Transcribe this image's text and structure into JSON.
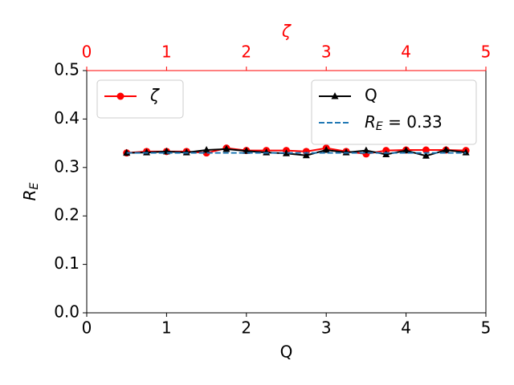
{
  "chart_data": {
    "type": "line",
    "xlabel": "Q",
    "ylabel": "RE",
    "x2label": "ζ",
    "xlim": [
      0,
      5
    ],
    "xticks": [
      0,
      1,
      2,
      3,
      4,
      5
    ],
    "x2lim": [
      0,
      5
    ],
    "x2ticks": [
      0,
      1,
      2,
      3,
      4,
      5
    ],
    "x2color": "#ff0000",
    "ylim": [
      0,
      0.5
    ],
    "yticks": [
      {
        "value": 0,
        "label": "0.0"
      },
      0.1,
      0.2,
      0.3,
      0.4,
      0.5
    ],
    "series": [
      {
        "name": "ζ",
        "color": "#ff0000",
        "marker": "circle",
        "axis": "x2",
        "legend": "upper left",
        "x": [
          0.5,
          0.75,
          1.0,
          1.25,
          1.5,
          1.75,
          2.0,
          2.25,
          2.5,
          2.75,
          3.0,
          3.25,
          3.5,
          3.75,
          4.0,
          4.25,
          4.5,
          4.75
        ],
        "values": [
          0.33,
          0.333,
          0.333,
          0.333,
          0.33,
          0.34,
          0.335,
          0.335,
          0.335,
          0.333,
          0.34,
          0.333,
          0.328,
          0.335,
          0.336,
          0.336,
          0.336,
          0.335
        ]
      },
      {
        "name": "Q",
        "color": "#000000",
        "marker": "triangle",
        "legend": "upper right",
        "x": [
          0.5,
          0.75,
          1.0,
          1.25,
          1.5,
          1.75,
          2.0,
          2.25,
          2.5,
          2.75,
          3.0,
          3.25,
          3.5,
          3.75,
          4.0,
          4.25,
          4.5,
          4.75
        ],
        "values": [
          0.33,
          0.331,
          0.333,
          0.331,
          0.336,
          0.338,
          0.334,
          0.331,
          0.329,
          0.325,
          0.336,
          0.331,
          0.335,
          0.327,
          0.335,
          0.324,
          0.336,
          0.331
        ]
      },
      {
        "name": "RE = 0.33",
        "color": "#1f77b4",
        "linestyle": "dashed",
        "legend": "upper right",
        "x": [
          0.5,
          4.75
        ],
        "values": [
          0.33,
          0.33
        ]
      }
    ]
  }
}
